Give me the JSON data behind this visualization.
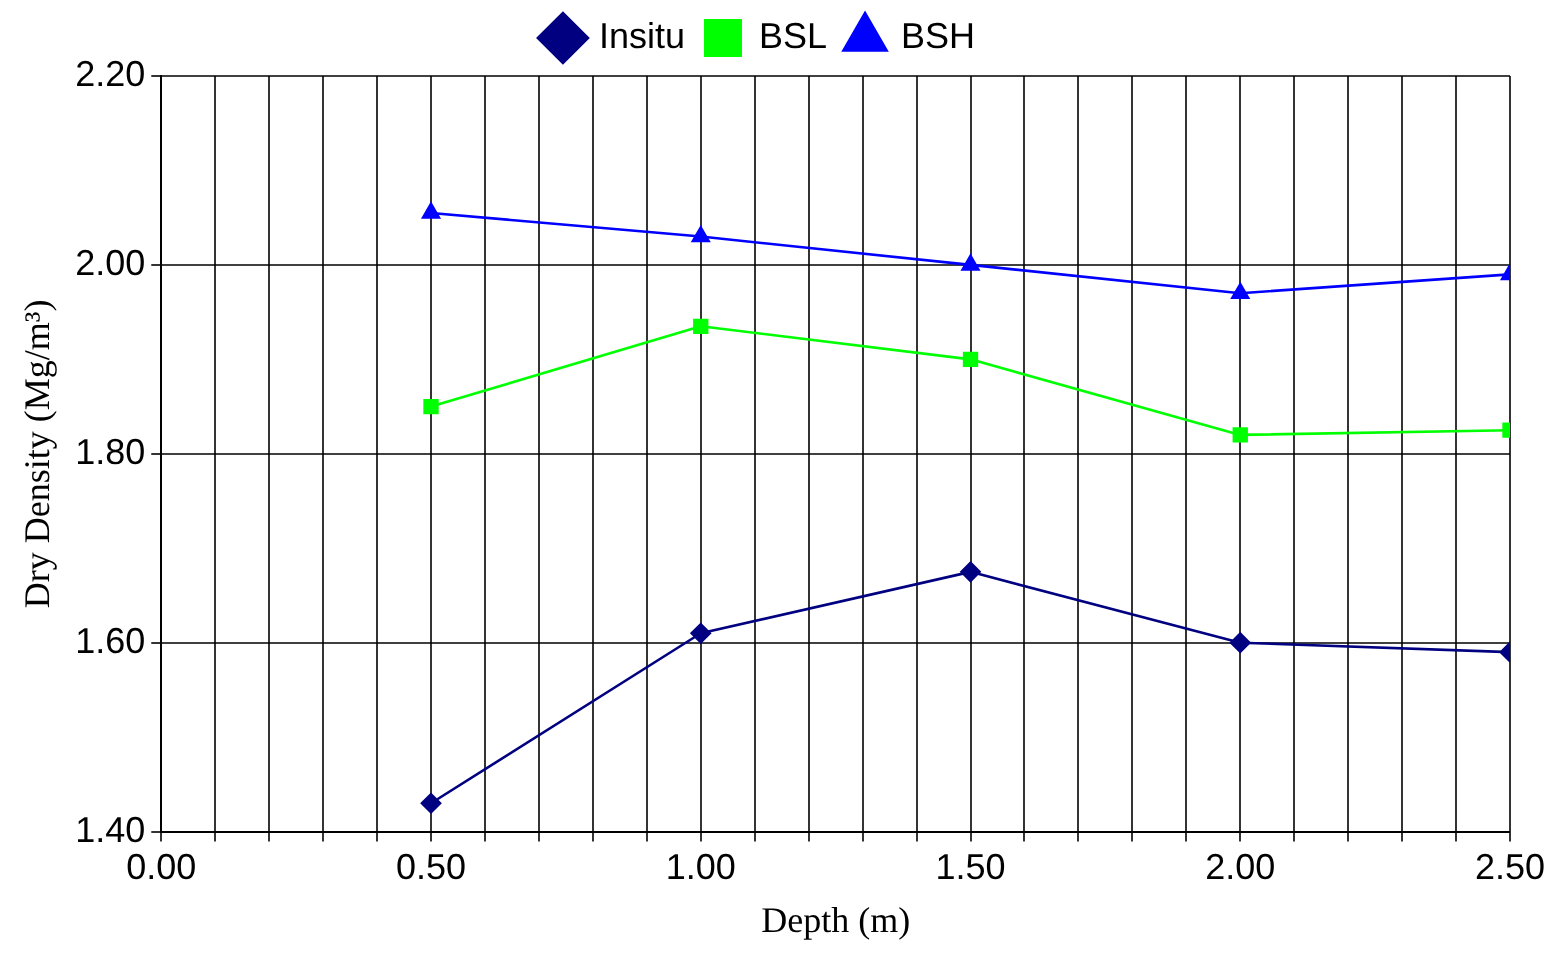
{
  "chart_data": {
    "type": "line",
    "xlabel": "Depth (m)",
    "ylabel": "Dry Density (Mg/m³)",
    "x": [
      0.5,
      1.0,
      1.5,
      2.0,
      2.5
    ],
    "series": [
      {
        "name": "Insitu",
        "color": "#000080",
        "marker": "diamond",
        "values": [
          1.43,
          1.61,
          1.675,
          1.6,
          1.59
        ]
      },
      {
        "name": "BSL",
        "color": "#00ff00",
        "marker": "square",
        "values": [
          1.85,
          1.935,
          1.9,
          1.82,
          1.825
        ]
      },
      {
        "name": "BSH",
        "color": "#0000ff",
        "marker": "triangle",
        "values": [
          2.055,
          2.03,
          2.0,
          1.97,
          1.99
        ]
      }
    ],
    "xlim": [
      0,
      2.5
    ],
    "xticks": [
      {
        "value": 0,
        "label": "0.00"
      },
      {
        "value": 0.1,
        "label": null
      },
      {
        "value": 0.2,
        "label": null
      },
      {
        "value": 0.3,
        "label": null
      },
      {
        "value": 0.4,
        "label": null
      },
      {
        "value": 0.5,
        "label": "0.50"
      },
      {
        "value": 0.6,
        "label": null
      },
      {
        "value": 0.7,
        "label": null
      },
      {
        "value": 0.8,
        "label": null
      },
      {
        "value": 0.9,
        "label": null
      },
      {
        "value": 1.0,
        "label": "1.00"
      },
      {
        "value": 1.1,
        "label": null
      },
      {
        "value": 1.2,
        "label": null
      },
      {
        "value": 1.3,
        "label": null
      },
      {
        "value": 1.4,
        "label": null
      },
      {
        "value": 1.5,
        "label": "1.50"
      },
      {
        "value": 1.6,
        "label": null
      },
      {
        "value": 1.7,
        "label": null
      },
      {
        "value": 1.8,
        "label": null
      },
      {
        "value": 1.9,
        "label": null
      },
      {
        "value": 2.0,
        "label": "2.00"
      },
      {
        "value": 2.1,
        "label": null
      },
      {
        "value": 2.2,
        "label": null
      },
      {
        "value": 2.3,
        "label": null
      },
      {
        "value": 2.4,
        "label": null
      },
      {
        "value": 2.5,
        "label": "2.50"
      }
    ],
    "ylim": [
      1.4,
      2.2
    ],
    "yticks": [
      {
        "value": 1.4,
        "label": "1.40"
      },
      {
        "value": 1.6,
        "label": "1.60"
      },
      {
        "value": 1.8,
        "label": "1.80"
      },
      {
        "value": 2.0,
        "label": "2.00"
      },
      {
        "value": 2.2,
        "label": "2.20"
      }
    ],
    "grid": true,
    "legend": "top",
    "line_style": "solid"
  }
}
